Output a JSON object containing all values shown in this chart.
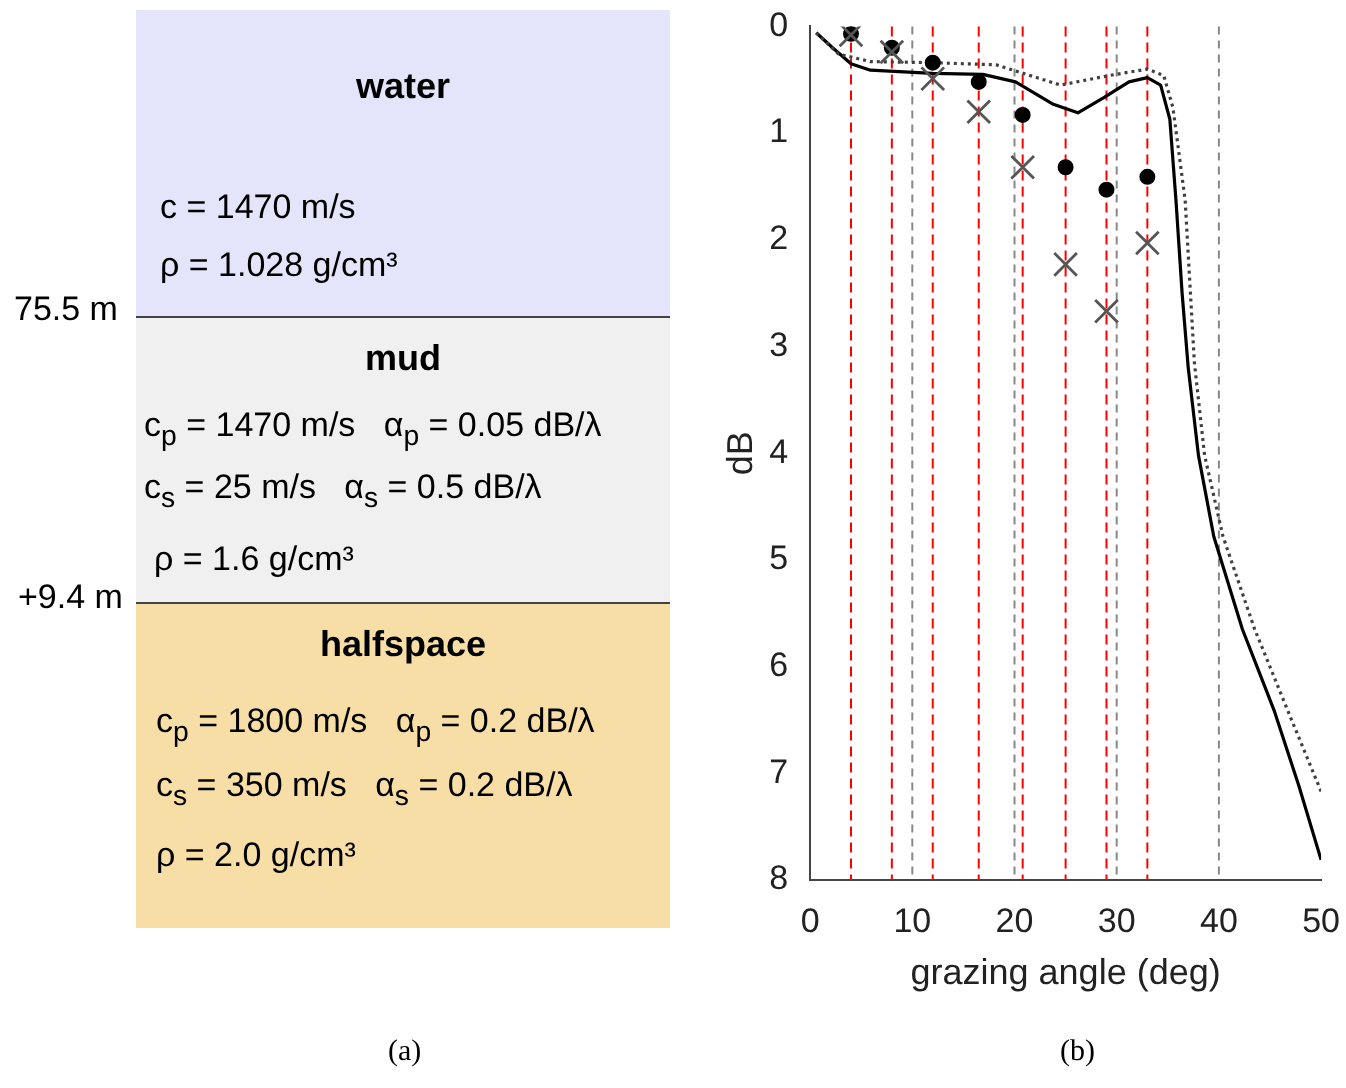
{
  "chart_data": [
    {
      "type": "other",
      "categories": [
        "water",
        "mud",
        "halfspace"
      ],
      "colors": [
        "#e4e4fb",
        "#f0f0f0",
        "#f7dda6"
      ],
      "annotations": [
        "c = 1470 m/s",
        "ρ = 1.028 g/cm³",
        "75.5 m",
        "c$_{p}$ = 1470 m/s   α$_{p}$ = 0.05 dB/λ",
        "c$_{s}$ = 25 m/s   α$_{s}$ = 0.5 dB/λ",
        "ρ = 1.6 g/cm³",
        "+9.4 m",
        "c$_{p}$ = 1800 m/s   α$_{p}$ = 0.2 dB/λ",
        "c$_{s}$ = 350 m/s   α$_{s}$ = 0.2 dB/λ",
        "ρ = 2.0 g/cm³",
        "(a)"
      ]
    },
    {
      "type": "line",
      "xlabel": "grazing angle (deg)",
      "ylabel": "dB",
      "xlim": [
        0,
        50
      ],
      "ylim": [
        8,
        0
      ],
      "xticks": [
        0,
        10,
        20,
        30,
        40,
        50
      ],
      "yticks": [
        0,
        1,
        2,
        3,
        4,
        5,
        6,
        7,
        8
      ],
      "grid": "x",
      "legend": false,
      "annotations": [
        "(b)"
      ],
      "ref_lines": [
        {
          "axis": "x",
          "value": 4,
          "color": "#ff0000",
          "line_style": "dashed"
        },
        {
          "axis": "x",
          "value": 8,
          "color": "#ff0000",
          "line_style": "dashed"
        },
        {
          "axis": "x",
          "value": 12,
          "color": "#ff0000",
          "line_style": "dashed"
        },
        {
          "axis": "x",
          "value": 16.5,
          "color": "#ff0000",
          "line_style": "dashed"
        },
        {
          "axis": "x",
          "value": 20.8,
          "color": "#ff0000",
          "line_style": "dashed"
        },
        {
          "axis": "x",
          "value": 25,
          "color": "#ff0000",
          "line_style": "dashed"
        },
        {
          "axis": "x",
          "value": 29,
          "color": "#ff0000",
          "line_style": "dashed"
        },
        {
          "axis": "x",
          "value": 33,
          "color": "#ff0000",
          "line_style": "dashed"
        }
      ],
      "series": [
        {
          "type": "line",
          "color": "#000000",
          "line_style": "solid",
          "marker": "none",
          "x": [
            0.6,
            2.2,
            4,
            5.9,
            12,
            16.9,
            20.1,
            23.8,
            26.2,
            28.7,
            31.2,
            33,
            34.3,
            35.2,
            35.8,
            36.4,
            37,
            38,
            39.5,
            42.3,
            45.4,
            47.8,
            50
          ],
          "values": [
            0.06,
            0.2,
            0.35,
            0.41,
            0.44,
            0.45,
            0.52,
            0.73,
            0.81,
            0.67,
            0.52,
            0.48,
            0.55,
            0.87,
            1.63,
            2.5,
            3.2,
            4.02,
            4.78,
            5.65,
            6.41,
            7.11,
            7.81
          ]
        },
        {
          "type": "line",
          "color": "#404040",
          "line_style": "dotted",
          "marker": "none",
          "x": [
            0.6,
            2.8,
            5.9,
            12,
            18.2,
            24.5,
            29.3,
            33,
            34.6,
            35.5,
            36.7,
            37.6,
            38.6,
            40.4,
            43.5,
            47.2,
            50
          ],
          "values": [
            0.06,
            0.26,
            0.33,
            0.34,
            0.36,
            0.55,
            0.46,
            0.4,
            0.46,
            0.76,
            1.63,
            3.15,
            4.02,
            4.78,
            5.65,
            6.52,
            7.17
          ]
        },
        {
          "type": "scatter",
          "color": "#000000",
          "marker": "circle",
          "x": [
            4,
            8,
            12,
            16.5,
            20.8,
            25,
            29,
            33
          ],
          "values": [
            0.07,
            0.2,
            0.34,
            0.52,
            0.83,
            1.32,
            1.53,
            1.41
          ]
        },
        {
          "type": "scatter",
          "color": "#555555",
          "marker": "cross",
          "x": [
            4,
            8,
            12,
            16.5,
            20.8,
            25,
            29,
            33
          ],
          "values": [
            0.08,
            0.24,
            0.49,
            0.8,
            1.32,
            2.23,
            2.67,
            2.03
          ]
        }
      ]
    }
  ]
}
